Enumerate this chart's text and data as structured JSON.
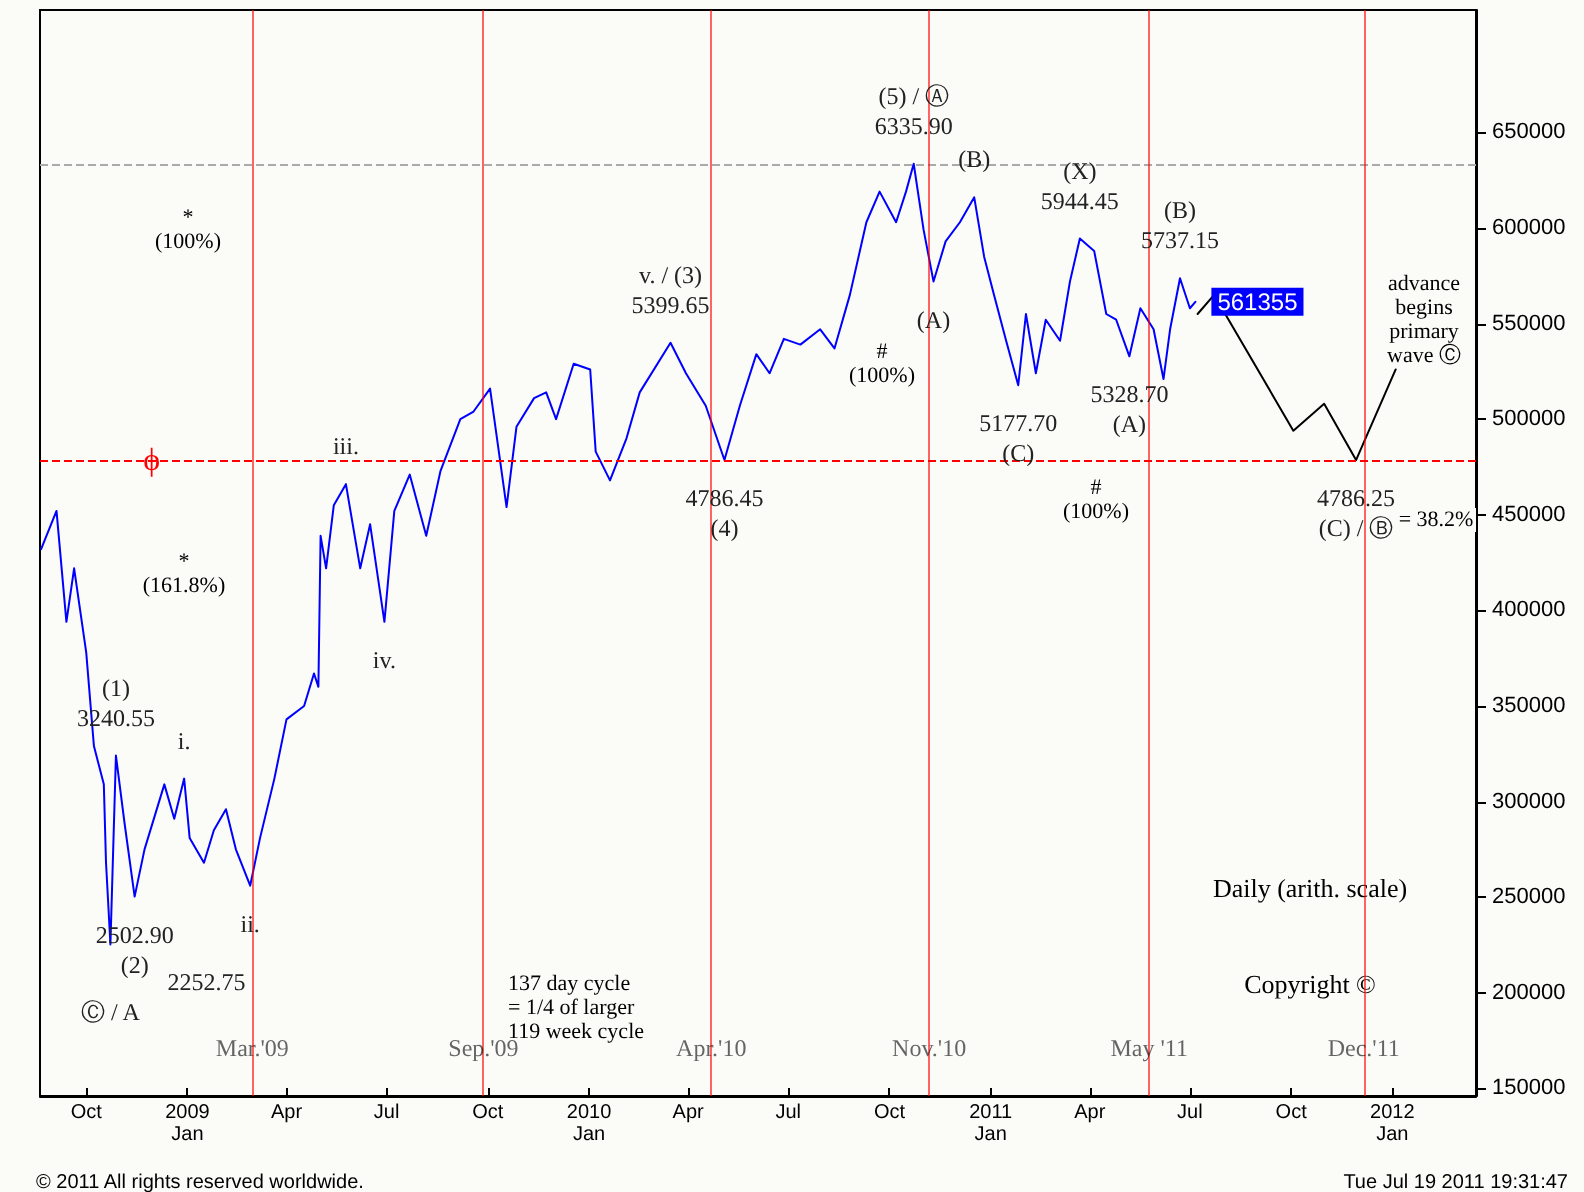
{
  "chart_data": {
    "type": "line",
    "xlim": [
      "2008-08-20",
      "2012-03-17"
    ],
    "xticks": [
      {
        "value": "2008-10-01",
        "label": "Oct"
      },
      {
        "value": "2009-01-01",
        "label": "2009\nJan"
      },
      {
        "value": "2009-04-01",
        "label": "Apr"
      },
      {
        "value": "2009-07-01",
        "label": "Jul"
      },
      {
        "value": "2009-10-01",
        "label": "Oct"
      },
      {
        "value": "2010-01-01",
        "label": "2010\nJan"
      },
      {
        "value": "2010-04-01",
        "label": "Apr"
      },
      {
        "value": "2010-07-01",
        "label": "Jul"
      },
      {
        "value": "2010-10-01",
        "label": "Oct"
      },
      {
        "value": "2011-01-01",
        "label": "2011\nJan"
      },
      {
        "value": "2011-04-01",
        "label": "Apr"
      },
      {
        "value": "2011-07-01",
        "label": "Jul"
      },
      {
        "value": "2011-10-01",
        "label": "Oct"
      },
      {
        "value": "2012-01-01",
        "label": "2012\nJan"
      }
    ],
    "ylim": [
      146000,
      714000
    ],
    "yticks": [
      150000,
      200000,
      250000,
      300000,
      350000,
      400000,
      450000,
      500000,
      550000,
      600000,
      650000
    ],
    "grid": false,
    "marker": "none",
    "line_style": "solid",
    "series": [
      {
        "color": "#0000ff",
        "x": [
          "2008-08-21",
          "2008-09-04",
          "2008-09-13",
          "2008-09-20",
          "2008-10-01",
          "2008-10-08",
          "2008-10-17",
          "2008-10-19",
          "2008-10-23",
          "2008-10-28",
          "2008-11-05",
          "2008-11-14",
          "2008-11-23",
          "2008-12-11",
          "2008-12-20",
          "2008-12-29",
          "2009-01-03",
          "2009-01-16",
          "2009-01-25",
          "2009-02-05",
          "2009-02-14",
          "2009-02-27",
          "2009-03-08",
          "2009-03-21",
          "2009-04-01",
          "2009-04-17",
          "2009-04-26",
          "2009-04-30",
          "2009-05-02",
          "2009-05-07",
          "2009-05-14",
          "2009-05-25",
          "2009-06-07",
          "2009-06-16",
          "2009-06-29",
          "2009-07-08",
          "2009-07-22",
          "2009-08-06",
          "2009-08-19",
          "2009-09-06",
          "2009-09-18",
          "2009-10-03",
          "2009-10-18",
          "2009-10-27",
          "2009-11-12",
          "2009-11-23",
          "2009-12-02",
          "2009-12-18",
          "2010-01-02",
          "2010-01-07",
          "2010-01-20",
          "2010-02-04",
          "2010-02-16",
          "2010-03-16",
          "2010-03-30",
          "2010-04-17",
          "2010-05-04",
          "2010-05-18",
          "2010-06-02",
          "2010-06-14",
          "2010-06-27",
          "2010-07-12",
          "2010-07-30",
          "2010-08-12",
          "2010-08-26",
          "2010-09-10",
          "2010-09-22",
          "2010-10-07",
          "2010-10-16",
          "2010-10-23",
          "2010-11-01",
          "2010-11-10",
          "2010-11-21",
          "2010-12-04",
          "2010-12-17",
          "2010-12-26",
          "2011-01-04",
          "2011-01-15",
          "2011-01-26",
          "2011-02-02",
          "2011-02-11",
          "2011-02-20",
          "2011-03-05",
          "2011-03-14",
          "2011-03-23",
          "2011-04-05",
          "2011-04-16",
          "2011-04-25",
          "2011-05-07",
          "2011-05-17",
          "2011-05-29",
          "2011-06-07",
          "2011-06-13",
          "2011-06-22",
          "2011-07-01",
          "2011-07-06"
        ],
        "values": [
          432000,
          452000,
          394000,
          422000,
          378000,
          329000,
          309000,
          268000,
          225275,
          324055,
          288000,
          250290,
          275000,
          309000,
          291000,
          312000,
          281000,
          268000,
          285000,
          296000,
          275000,
          256000,
          281000,
          312000,
          343000,
          350000,
          367000,
          360000,
          439000,
          422000,
          455000,
          466000,
          422000,
          445000,
          394000,
          452000,
          471000,
          439000,
          473000,
          500000,
          504000,
          516000,
          454000,
          496000,
          511000,
          514000,
          500000,
          529000,
          526000,
          483000,
          468000,
          490000,
          514000,
          539965,
          524000,
          507000,
          478645,
          507000,
          534000,
          524000,
          542000,
          539000,
          547000,
          537000,
          565000,
          603000,
          619000,
          603000,
          619000,
          633590,
          599000,
          572000,
          593000,
          603000,
          616000,
          585000,
          565000,
          541000,
          517770,
          555000,
          524000,
          552000,
          541000,
          572000,
          594445,
          588000,
          555000,
          552000,
          532870,
          558000,
          547000,
          521000,
          547000,
          573715,
          558000,
          561355
        ],
        "value_labels": [
          null,
          null,
          null,
          null,
          null,
          null,
          null,
          null,
          null,
          null,
          null,
          null,
          null,
          null,
          null,
          null,
          null,
          null,
          null,
          null,
          null,
          null,
          null,
          null,
          null,
          null,
          null,
          null,
          null,
          null,
          null,
          null,
          null,
          null,
          null,
          null,
          null,
          null,
          null,
          null,
          null,
          null,
          null,
          null,
          null,
          null,
          null,
          null,
          null,
          null,
          null,
          null,
          null,
          null,
          null,
          null,
          null,
          null,
          null,
          null,
          null,
          null,
          null,
          null,
          null,
          null,
          null,
          null,
          null,
          null,
          null,
          null,
          null,
          null,
          null,
          null,
          null,
          null,
          null,
          null,
          null,
          null,
          null,
          null,
          null,
          null,
          null,
          null,
          null,
          null,
          null,
          null,
          null,
          null,
          null,
          "561355"
        ]
      },
      {
        "color": "#000000",
        "x": [
          "2011-07-08",
          "2011-07-23",
          "2011-10-03",
          "2011-10-31",
          "2011-11-29",
          "2012-01-04"
        ],
        "values": [
          555000,
          565000,
          494000,
          508000,
          478625,
          526000
        ]
      }
    ],
    "ref_lines": [
      {
        "axis": "y",
        "value": 633590,
        "color": "#aaaaaa",
        "line_style": "dashed"
      },
      {
        "axis": "y",
        "value": 478000,
        "label": "ϕ",
        "color": "#ff0000",
        "line_style": "dashed"
      },
      {
        "axis": "x",
        "value": "2009-03-01",
        "label": "Mar.'09",
        "color": "#ff0000"
      },
      {
        "axis": "x",
        "value": "2009-09-27",
        "label": "Sep.'09",
        "color": "#ff0000"
      },
      {
        "axis": "x",
        "value": "2010-04-22",
        "label": "Apr.'10",
        "color": "#ff0000"
      },
      {
        "axis": "x",
        "value": "2010-11-06",
        "label": "Nov.'10",
        "color": "#ff0000"
      },
      {
        "axis": "x",
        "value": "2011-05-25",
        "label": "May '11",
        "color": "#ff0000"
      },
      {
        "axis": "x",
        "value": "2011-12-06",
        "label": "Dec.'11",
        "color": "#ff0000"
      }
    ],
    "annotations": [
      {
        "text": "6335.90",
        "x": "2010-10-23",
        "y": 633590
      },
      {
        "text": "(5) / Ⓐ",
        "x": "2010-10-23",
        "y": 633590
      },
      {
        "text": "(B)",
        "x": "2010-12-17",
        "y": 616000
      },
      {
        "text": "(A)",
        "x": "2010-11-10",
        "y": 572000
      },
      {
        "text": "5177.70",
        "x": "2011-01-26",
        "y": 517770
      },
      {
        "text": "(C)",
        "x": "2011-01-26",
        "y": 517770
      },
      {
        "text": "5944.45",
        "x": "2011-03-23",
        "y": 594445
      },
      {
        "text": "(X)",
        "x": "2011-03-23",
        "y": 594445
      },
      {
        "text": "5737.15",
        "x": "2011-06-22",
        "y": 573715
      },
      {
        "text": "(B)",
        "x": "2011-06-22",
        "y": 573715
      },
      {
        "text": "5328.70",
        "x": "2011-05-07",
        "y": 532870
      },
      {
        "text": "(A)",
        "x": "2011-05-07",
        "y": 532870
      },
      {
        "text": "4786.25",
        "x": "2011-11-29",
        "y": 478625
      },
      {
        "text": "(C) / Ⓑ",
        "x": "2011-11-29",
        "y": 478625
      },
      {
        "text": "5399.65",
        "x": "2010-03-16",
        "y": 539965
      },
      {
        "text": "v. / (3)",
        "x": "2010-03-16",
        "y": 539965
      },
      {
        "text": "4786.45",
        "x": "2010-05-04",
        "y": 478645
      },
      {
        "text": "(4)",
        "x": "2010-05-04",
        "y": 478645
      },
      {
        "text": "iii.",
        "x": "2009-05-25",
        "y": 466000
      },
      {
        "text": "iv.",
        "x": "2009-06-29",
        "y": 394000
      },
      {
        "text": "i.",
        "x": "2008-12-29",
        "y": 312000
      },
      {
        "text": "ii.",
        "x": "2009-02-27",
        "y": 256000
      },
      {
        "text": "3240.55",
        "x": "2008-10-28",
        "y": 324055
      },
      {
        "text": "(1)",
        "x": "2008-10-28",
        "y": 324055
      },
      {
        "text": "2502.90",
        "x": "2008-11-14",
        "y": 250290
      },
      {
        "text": "(2)",
        "x": "2008-11-14",
        "y": 250290
      },
      {
        "text": "2252.75",
        "x": "2008-10-23",
        "y": 225275
      },
      {
        "text": "Ⓒ / A",
        "x": "2008-10-23",
        "y": 225275
      },
      "#\n(100%)",
      "#\n(100%)",
      "*\n(100%)",
      "*\n(161.8%)",
      "advance\nbegins\nprimary\nwave Ⓒ",
      "= 38.2%",
      "137 day cycle\n= 1/4 of larger\n119 week cycle",
      "Daily (arith. scale)",
      "Copyright ©",
      "© 2011 All rights reserved worldwide.",
      "Tue Jul 19 2011 19:31:47"
    ]
  }
}
